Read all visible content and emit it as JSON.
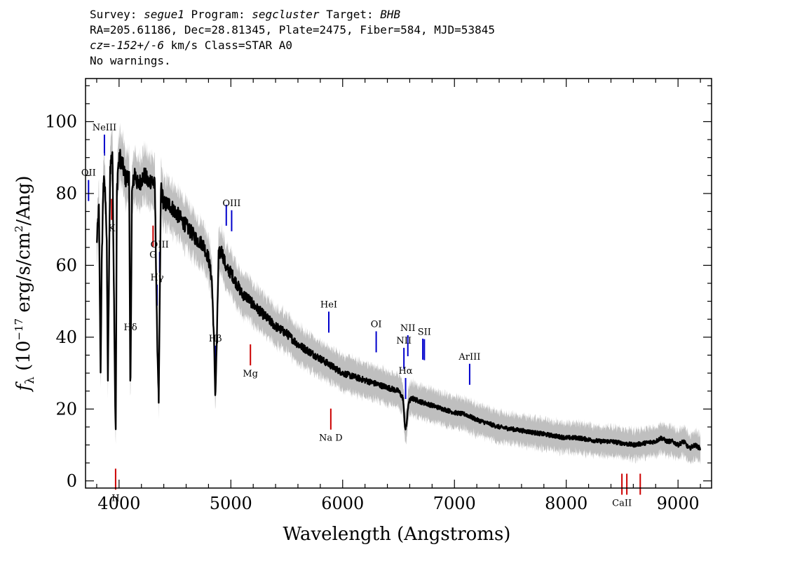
{
  "header": {
    "survey_label": "Survey:",
    "survey": "segue1",
    "program_label": "Program:",
    "program": "segcluster",
    "target_label": "Target:",
    "target": "BHB",
    "line2": "RA=205.61186, Dec=28.81345, Plate=2475, Fiber=584, MJD=53845",
    "cz_label": "cz=",
    "cz": "-152+/-6",
    "cz_rest": " km/s Class=STAR A0",
    "warnings": "No warnings."
  },
  "chart_data": {
    "type": "line",
    "xlabel": "Wavelength (Angstroms)",
    "ylabel": "fλ (10^-17 erg/s/cm^2/Ang)",
    "xlim": [
      3700,
      9300
    ],
    "ylim": [
      -2,
      112
    ],
    "x_ticks": [
      "4000",
      "5000",
      "6000",
      "7000",
      "8000",
      "9000"
    ],
    "y_ticks": [
      "0",
      "20",
      "40",
      "60",
      "80",
      "100"
    ],
    "grid": false,
    "colors": {
      "spectrum": "#000000",
      "error": "#bfbfbf",
      "emission": "#0000cc",
      "absorption": "#cc0000"
    },
    "spectrum": {
      "x": [
        3800,
        3820,
        3835,
        3845,
        3860,
        3880,
        3890,
        3900,
        3920,
        3940,
        3955,
        3965,
        3970,
        3980,
        3990,
        4010,
        4030,
        4060,
        4090,
        4101,
        4115,
        4140,
        4170,
        4200,
        4230,
        4260,
        4290,
        4320,
        4340,
        4355,
        4375,
        4400,
        4450,
        4500,
        4550,
        4600,
        4650,
        4700,
        4750,
        4800,
        4830,
        4850,
        4861,
        4875,
        4890,
        4920,
        4960,
        5000,
        5050,
        5100,
        5150,
        5200,
        5300,
        5400,
        5500,
        5600,
        5700,
        5800,
        5900,
        6000,
        6100,
        6200,
        6300,
        6400,
        6500,
        6540,
        6555,
        6563,
        6572,
        6590,
        6620,
        6700,
        6800,
        6900,
        7000,
        7100,
        7200,
        7300,
        7400,
        7500,
        7600,
        7700,
        7800,
        7900,
        8000,
        8100,
        8200,
        8300,
        8400,
        8500,
        8600,
        8700,
        8800,
        8850,
        8900,
        8950,
        9000,
        9050,
        9100,
        9150,
        9200
      ],
      "y": [
        66,
        76,
        30,
        60,
        84,
        79,
        65,
        28,
        87,
        92,
        50,
        21,
        14,
        80,
        87,
        90,
        88,
        84,
        85,
        22,
        80,
        86,
        82,
        84,
        85,
        83,
        84,
        82,
        40,
        22,
        82,
        77,
        77,
        75,
        73,
        71,
        69,
        67,
        66,
        62,
        56,
        38,
        23,
        40,
        63,
        64,
        59,
        58,
        55,
        52,
        51,
        49,
        46,
        43,
        41,
        38,
        36,
        34,
        32,
        30,
        29,
        28,
        27,
        26,
        25,
        23,
        16,
        14,
        16,
        22,
        23,
        22,
        21,
        20,
        19,
        18.5,
        17,
        16,
        15,
        14.5,
        14,
        13.5,
        13,
        12.5,
        12,
        12,
        11.5,
        11,
        11,
        10.5,
        10,
        10.5,
        11,
        12,
        11,
        11,
        10,
        11,
        9,
        10,
        9
      ]
    },
    "emission_lines": [
      {
        "name": "OII",
        "wave": 3727,
        "row": 1,
        "display": "OII"
      },
      {
        "name": "NeIII",
        "wave": 3869,
        "row": 0,
        "display": "NeIII"
      },
      {
        "name": "Hδ",
        "wave": 4102,
        "row": 0,
        "display": "Hδ"
      },
      {
        "name": "Hγ",
        "wave": 4340,
        "row": 0,
        "display": "Hγ"
      },
      {
        "name": "OIII",
        "wave": 4363,
        "row": 1,
        "display": "OIII"
      },
      {
        "name": "Hβ",
        "wave": 4861,
        "row": 0,
        "display": "Hβ"
      },
      {
        "name": "OIII",
        "wave": 4959,
        "row": 1,
        "display": ""
      },
      {
        "name": "OIII",
        "wave": 5007,
        "row": 1,
        "display": "OIII"
      },
      {
        "name": "HeI",
        "wave": 5876,
        "row": 0,
        "display": "HeI"
      },
      {
        "name": "OI",
        "wave": 6300,
        "row": 0,
        "display": "OI"
      },
      {
        "name": "NII",
        "wave": 6548,
        "row": 1,
        "display": "NII"
      },
      {
        "name": "Hα",
        "wave": 6563,
        "row": 0,
        "display": "Hα"
      },
      {
        "name": "NII",
        "wave": 6583,
        "row": 2,
        "display": "NII"
      },
      {
        "name": "SII",
        "wave": 6717,
        "row": 1,
        "display": ""
      },
      {
        "name": "SII",
        "wave": 6731,
        "row": 1,
        "display": "SII"
      },
      {
        "name": "ArIII",
        "wave": 7136,
        "row": 0,
        "display": "ArIII"
      }
    ],
    "absorption_lines": [
      {
        "name": "K",
        "wave": 3934,
        "row": 0,
        "display": "K"
      },
      {
        "name": "H",
        "wave": 3969,
        "row": 0,
        "display": "H"
      },
      {
        "name": "G",
        "wave": 4304,
        "row": 0,
        "display": "G"
      },
      {
        "name": "Mg",
        "wave": 5175,
        "row": 0,
        "display": "Mg"
      },
      {
        "name": "Na D",
        "wave": 5894,
        "row": 0,
        "display": "Na D"
      },
      {
        "name": "CaII",
        "wave": 8498,
        "row": 0,
        "display": "CaII"
      },
      {
        "name": "CaII",
        "wave": 8542,
        "row": 0,
        "display": ""
      },
      {
        "name": "CaII",
        "wave": 8662,
        "row": 0,
        "display": ""
      }
    ]
  }
}
